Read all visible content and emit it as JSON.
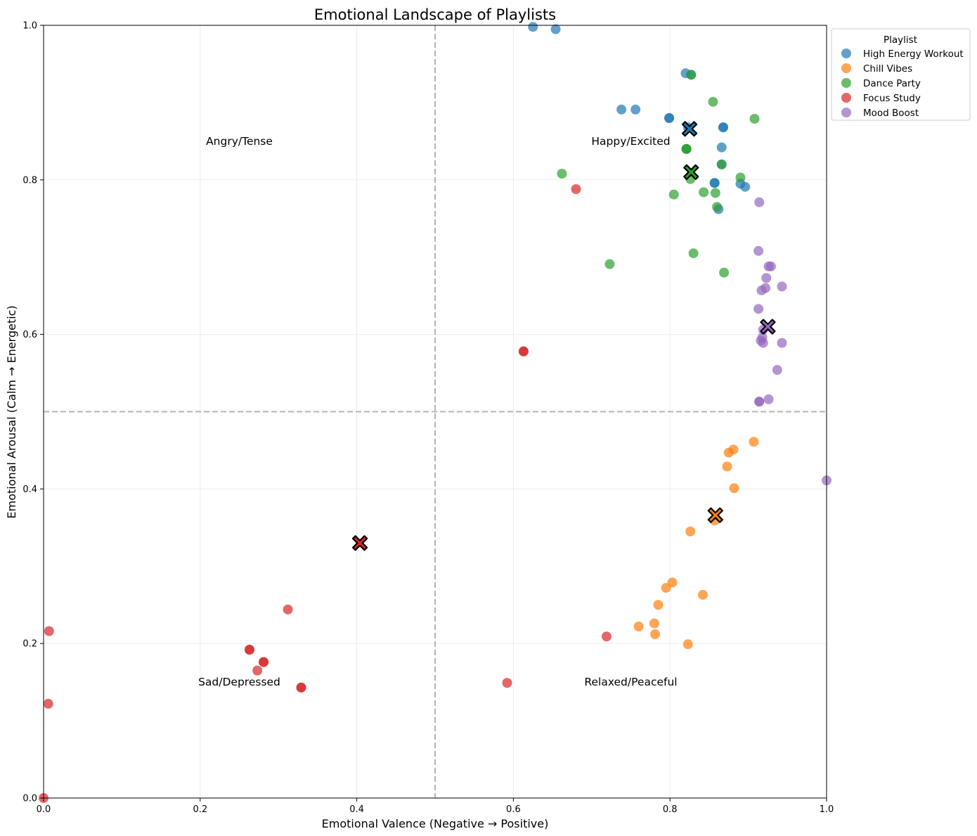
{
  "chart_data": {
    "type": "scatter",
    "title": "Emotional Landscape of Playlists",
    "xlabel": "Emotional Valence (Negative → Positive)",
    "ylabel": "Emotional Arousal (Calm → Energetic)",
    "xlim": [
      0,
      1
    ],
    "ylim": [
      0,
      1
    ],
    "xticks": [
      "0.0",
      "0.2",
      "0.4",
      "0.6",
      "0.8",
      "1.0"
    ],
    "yticks": [
      "0.0",
      "0.2",
      "0.4",
      "0.6",
      "0.8",
      "1.0"
    ],
    "grid": true,
    "reference_lines": {
      "x": 0.5,
      "y": 0.5
    },
    "quadrant_labels": [
      {
        "text": "Angry/Tense",
        "x": 0.25,
        "y": 0.85
      },
      {
        "text": "Happy/Excited",
        "x": 0.75,
        "y": 0.85
      },
      {
        "text": "Sad/Depressed",
        "x": 0.25,
        "y": 0.15
      },
      {
        "text": "Relaxed/Peaceful",
        "x": 0.75,
        "y": 0.15
      }
    ],
    "legend": {
      "title": "Playlist",
      "location": "outside upper right"
    },
    "series": [
      {
        "name": "High Energy Workout",
        "color": "#1f77b4",
        "centroid": [
          0.825,
          0.866
        ],
        "points": [
          [
            0.625,
            0.998
          ],
          [
            0.654,
            0.995
          ],
          [
            0.82,
            0.938
          ],
          [
            0.827,
            0.936
          ],
          [
            0.738,
            0.891
          ],
          [
            0.756,
            0.891
          ],
          [
            0.799,
            0.88
          ],
          [
            0.799,
            0.88
          ],
          [
            0.868,
            0.868
          ],
          [
            0.868,
            0.868
          ],
          [
            0.823,
            0.868
          ],
          [
            0.866,
            0.842
          ],
          [
            0.821,
            0.84
          ],
          [
            0.866,
            0.82
          ],
          [
            0.857,
            0.796
          ],
          [
            0.857,
            0.796
          ],
          [
            0.89,
            0.795
          ],
          [
            0.896,
            0.791
          ],
          [
            0.862,
            0.762
          ]
        ]
      },
      {
        "name": "Chill Vibes",
        "color": "#ff7f0e",
        "centroid": [
          0.858,
          0.366
        ],
        "points": [
          [
            0.907,
            0.461
          ],
          [
            0.881,
            0.451
          ],
          [
            0.875,
            0.447
          ],
          [
            0.873,
            0.429
          ],
          [
            0.882,
            0.401
          ],
          [
            0.857,
            0.359
          ],
          [
            0.826,
            0.345
          ],
          [
            0.803,
            0.279
          ],
          [
            0.795,
            0.272
          ],
          [
            0.842,
            0.263
          ],
          [
            0.785,
            0.25
          ],
          [
            0.76,
            0.222
          ],
          [
            0.78,
            0.226
          ],
          [
            0.781,
            0.212
          ],
          [
            0.823,
            0.199
          ]
        ]
      },
      {
        "name": "Dance Party",
        "color": "#2ca02c",
        "centroid": [
          0.827,
          0.81
        ],
        "points": [
          [
            0.827,
            0.936
          ],
          [
            0.855,
            0.901
          ],
          [
            0.908,
            0.879
          ],
          [
            0.821,
            0.84
          ],
          [
            0.821,
            0.84
          ],
          [
            0.866,
            0.82
          ],
          [
            0.662,
            0.808
          ],
          [
            0.89,
            0.803
          ],
          [
            0.826,
            0.801
          ],
          [
            0.805,
            0.781
          ],
          [
            0.843,
            0.784
          ],
          [
            0.858,
            0.783
          ],
          [
            0.86,
            0.765
          ],
          [
            0.83,
            0.705
          ],
          [
            0.723,
            0.691
          ],
          [
            0.869,
            0.68
          ]
        ]
      },
      {
        "name": "Focus Study",
        "color": "#d62728",
        "centroid": [
          0.404,
          0.33
        ],
        "points": [
          [
            0.68,
            0.788
          ],
          [
            0.613,
            0.578
          ],
          [
            0.613,
            0.578
          ],
          [
            0.312,
            0.244
          ],
          [
            0.007,
            0.216
          ],
          [
            0.719,
            0.209
          ],
          [
            0.263,
            0.192
          ],
          [
            0.263,
            0.192
          ],
          [
            0.281,
            0.176
          ],
          [
            0.281,
            0.176
          ],
          [
            0.273,
            0.165
          ],
          [
            0.592,
            0.149
          ],
          [
            0.329,
            0.143
          ],
          [
            0.329,
            0.143
          ],
          [
            0.006,
            0.122
          ],
          [
            0.0,
            0.0
          ]
        ]
      },
      {
        "name": "Mood Boost",
        "color": "#9467bd",
        "centroid": [
          0.925,
          0.61
        ],
        "points": [
          [
            0.914,
            0.771
          ],
          [
            0.913,
            0.708
          ],
          [
            0.926,
            0.688
          ],
          [
            0.929,
            0.688
          ],
          [
            0.923,
            0.673
          ],
          [
            0.943,
            0.662
          ],
          [
            0.922,
            0.66
          ],
          [
            0.917,
            0.657
          ],
          [
            0.913,
            0.633
          ],
          [
            0.919,
            0.606
          ],
          [
            0.918,
            0.596
          ],
          [
            0.916,
            0.592
          ],
          [
            0.919,
            0.589
          ],
          [
            0.943,
            0.589
          ],
          [
            0.937,
            0.554
          ],
          [
            0.926,
            0.516
          ],
          [
            0.914,
            0.513
          ],
          [
            0.914,
            0.513
          ],
          [
            1.0,
            0.411
          ]
        ]
      }
    ]
  }
}
